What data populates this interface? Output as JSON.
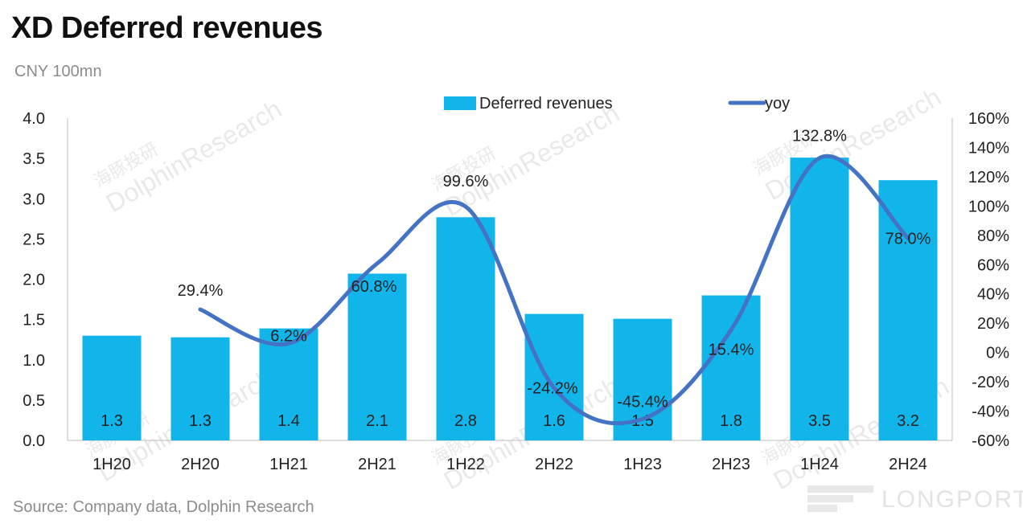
{
  "title": "XD Deferred revenues",
  "subtitle": "CNY 100mn",
  "source": "Source: Company data, Dolphin Research",
  "watermark": {
    "cn": "海豚投研",
    "en": "DolphinResearch",
    "brand": "LONGPORT"
  },
  "chart_data": {
    "type": "bar",
    "categories": [
      "1H20",
      "2H20",
      "1H21",
      "2H21",
      "1H22",
      "2H22",
      "1H23",
      "2H23",
      "1H24",
      "2H24"
    ],
    "series": [
      {
        "name": "Deferred revenues",
        "kind": "bar",
        "axis": "left",
        "color": "#12b5ea",
        "values": [
          1.3,
          1.28,
          1.39,
          2.07,
          2.77,
          1.57,
          1.51,
          1.8,
          3.51,
          3.23
        ],
        "labels": [
          "1.3",
          "1.3",
          "1.4",
          "2.1",
          "2.8",
          "1.6",
          "1.5",
          "1.8",
          "3.5",
          "3.2"
        ]
      },
      {
        "name": "yoy",
        "kind": "line",
        "axis": "right",
        "color": "#4472c4",
        "values": [
          null,
          29.4,
          6.2,
          60.8,
          99.6,
          -24.2,
          -45.4,
          15.4,
          132.8,
          78.0
        ],
        "labels": [
          "",
          "29.4%",
          "6.2%",
          "60.8%",
          "99.6%",
          "-24.2%",
          "-45.4%",
          "15.4%",
          "132.8%",
          "78.0%"
        ]
      }
    ],
    "ylim_left": [
      0,
      4
    ],
    "yticks_left": [
      "0.0",
      "0.5",
      "1.0",
      "1.5",
      "2.0",
      "2.5",
      "3.0",
      "3.5",
      "4.0"
    ],
    "ylim_right": [
      -60,
      160
    ],
    "yticks_right": [
      "-60%",
      "-40%",
      "-20%",
      "0%",
      "20%",
      "40%",
      "60%",
      "80%",
      "100%",
      "120%",
      "140%",
      "160%"
    ],
    "legend_position": "top",
    "grid": false,
    "smooth_line": true
  }
}
